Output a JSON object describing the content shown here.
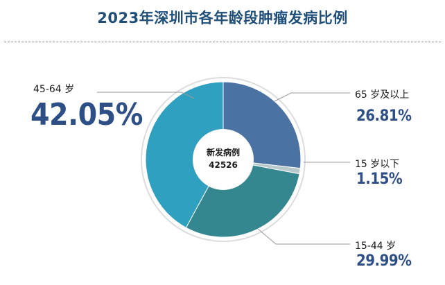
{
  "title": "2023年深圳市各年龄段肿瘤发病比例",
  "center": {
    "label": "新发病例",
    "value": "42526"
  },
  "chart_data": {
    "type": "pie",
    "title": "2023年深圳市各年龄段肿瘤发病比例",
    "categories": [
      "65 岁及以上",
      "15 岁以下",
      "15-44 岁",
      "45-64 岁"
    ],
    "values": [
      26.81,
      1.15,
      29.99,
      42.05
    ],
    "labels": [
      "26.81%",
      "1.15%",
      "29.99%",
      "42.05%"
    ],
    "colors": [
      "#4a72a3",
      "#b8c9cc",
      "#35878f",
      "#2fa0bf"
    ],
    "donut": true,
    "start_angle_deg": 0,
    "direction": "clockwise",
    "center_text": [
      "新发病例",
      "42526"
    ]
  }
}
